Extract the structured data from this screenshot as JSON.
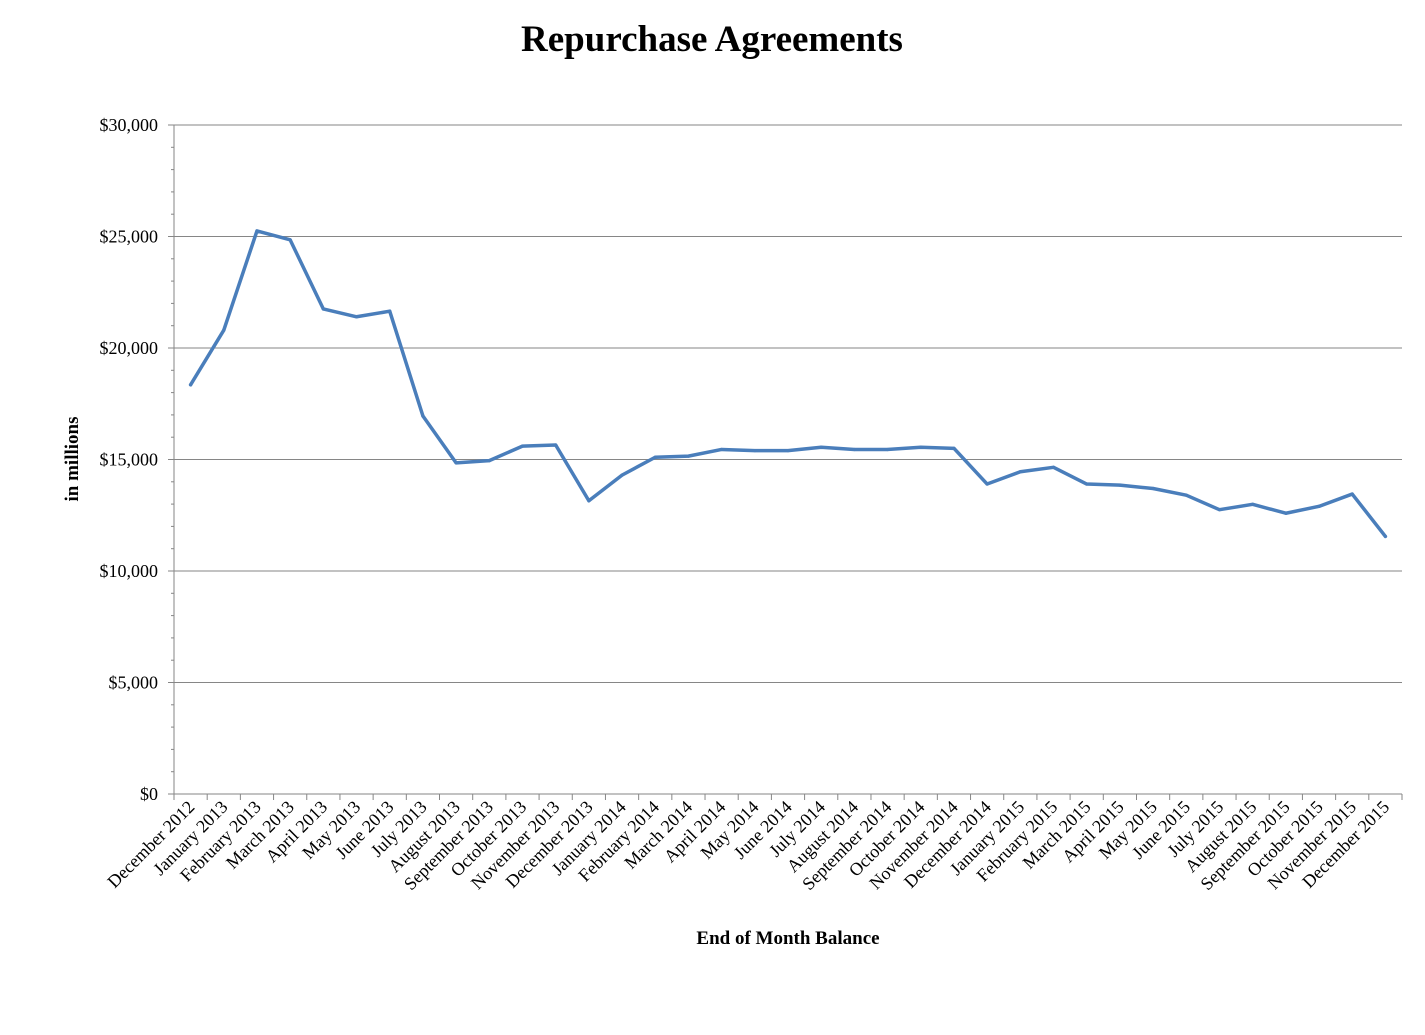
{
  "chart_data": {
    "type": "line",
    "title": "Repurchase Agreements",
    "xlabel": "End of Month Balance",
    "ylabel": "in millions",
    "ylim": [
      0,
      30000
    ],
    "y_ticks": [
      "$0",
      "$5,000",
      "$10,000",
      "$15,000",
      "$20,000",
      "$25,000",
      "$30,000"
    ],
    "y_tick_values": [
      0,
      5000,
      10000,
      15000,
      20000,
      25000,
      30000
    ],
    "grid": true,
    "legend": "none",
    "line_color": "#4a7ebb",
    "categories": [
      "December 2012",
      "January 2013",
      "February 2013",
      "March 2013",
      "April 2013",
      "May 2013",
      "June 2013",
      "July 2013",
      "August 2013",
      "September 2013",
      "October 2013",
      "November 2013",
      "December 2013",
      "January 2014",
      "February 2014",
      "March 2014",
      "April 2014",
      "May 2014",
      "June 2014",
      "July 2014",
      "August 2014",
      "September 2014",
      "October 2014",
      "November 2014",
      "December 2014",
      "January 2015",
      "February 2015",
      "March 2015",
      "April 2015",
      "May 2015",
      "June 2015",
      "July 2015",
      "August 2015",
      "September 2015",
      "October 2015",
      "November 2015",
      "December 2015"
    ],
    "series": [
      {
        "values": [
          18350,
          20800,
          25250,
          24850,
          21750,
          21400,
          21650,
          16950,
          14850,
          14950,
          15600,
          15650,
          13150,
          14300,
          15100,
          15150,
          15450,
          15400,
          15400,
          15550,
          15450,
          15450,
          15550,
          15500,
          13900,
          14450,
          14650,
          13900,
          13850,
          13700,
          13400,
          12750,
          12990,
          12590,
          12900,
          13450,
          11550
        ]
      }
    ]
  }
}
